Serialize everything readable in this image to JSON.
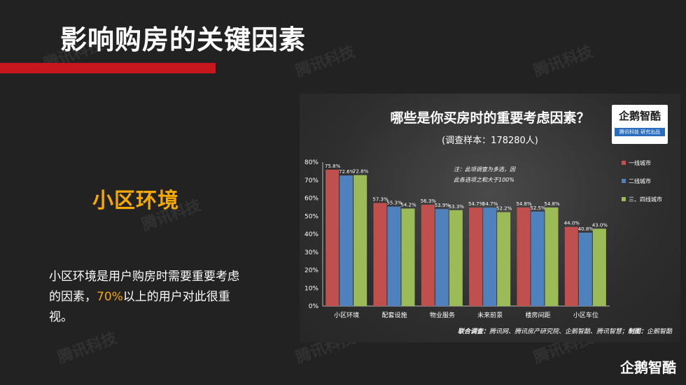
{
  "page": {
    "title": "影响购房的关键因素",
    "section_heading": "小区环境",
    "desc_before": "小区环境是用户购房时需要重要考虑的因素，",
    "desc_highlight": "70%",
    "desc_after": "以上的用户对此很重视。",
    "corner_logo": "企鹅智酷",
    "watermark": "腾讯科技",
    "accent_color": "#f5a800",
    "bar_color": "#c8161d"
  },
  "chart_logo": {
    "name": "企鹅智酷",
    "tagline": "腾讯科技 研究出品"
  },
  "chart_footer": {
    "label": "联合调查：",
    "partners": "腾讯网、腾讯房产研究院、企鹅智酷、腾讯智慧；",
    "made_label": "制图：",
    "maker": "企鹅智酷"
  },
  "chart_data": {
    "type": "bar",
    "title": "哪些是你买房时的重要考虑因素？",
    "subtitle": "(调查样本：178280人)",
    "note_line1": "注：此项调查为多选，因",
    "note_line2": "此各选项之和大于100%",
    "categories": [
      "小区环境",
      "配套设施",
      "物业服务",
      "未来前景",
      "楼房间距",
      "小区车位"
    ],
    "ylim": [
      0,
      80
    ],
    "yticks": [
      "0%",
      "10%",
      "20%",
      "30%",
      "40%",
      "50%",
      "60%",
      "70%",
      "80%"
    ],
    "grid": false,
    "legend_position": "right",
    "series": [
      {
        "name": "一线城市",
        "color": "#c0504d",
        "values": [
          75.8,
          57.3,
          56.3,
          54.7,
          54.8,
          44.0
        ],
        "labels": [
          "75.8%",
          "57.3%",
          "56.3%",
          "54.7%",
          "54.8%",
          "44.0%"
        ]
      },
      {
        "name": "二线城市",
        "color": "#4f81bd",
        "values": [
          72.6,
          55.3,
          53.9,
          54.7,
          52.5,
          40.8
        ],
        "labels": [
          "72.6%",
          "55.3%",
          "53.9%",
          "54.7%",
          "52.5%",
          "40.8%"
        ]
      },
      {
        "name": "三、四线城市",
        "color": "#9bbb59",
        "values": [
          72.8,
          54.2,
          53.3,
          52.2,
          54.8,
          43.0
        ],
        "labels": [
          "72.8%",
          "54.2%",
          "53.3%",
          "52.2%",
          "54.8%",
          "43.0%"
        ]
      }
    ]
  }
}
